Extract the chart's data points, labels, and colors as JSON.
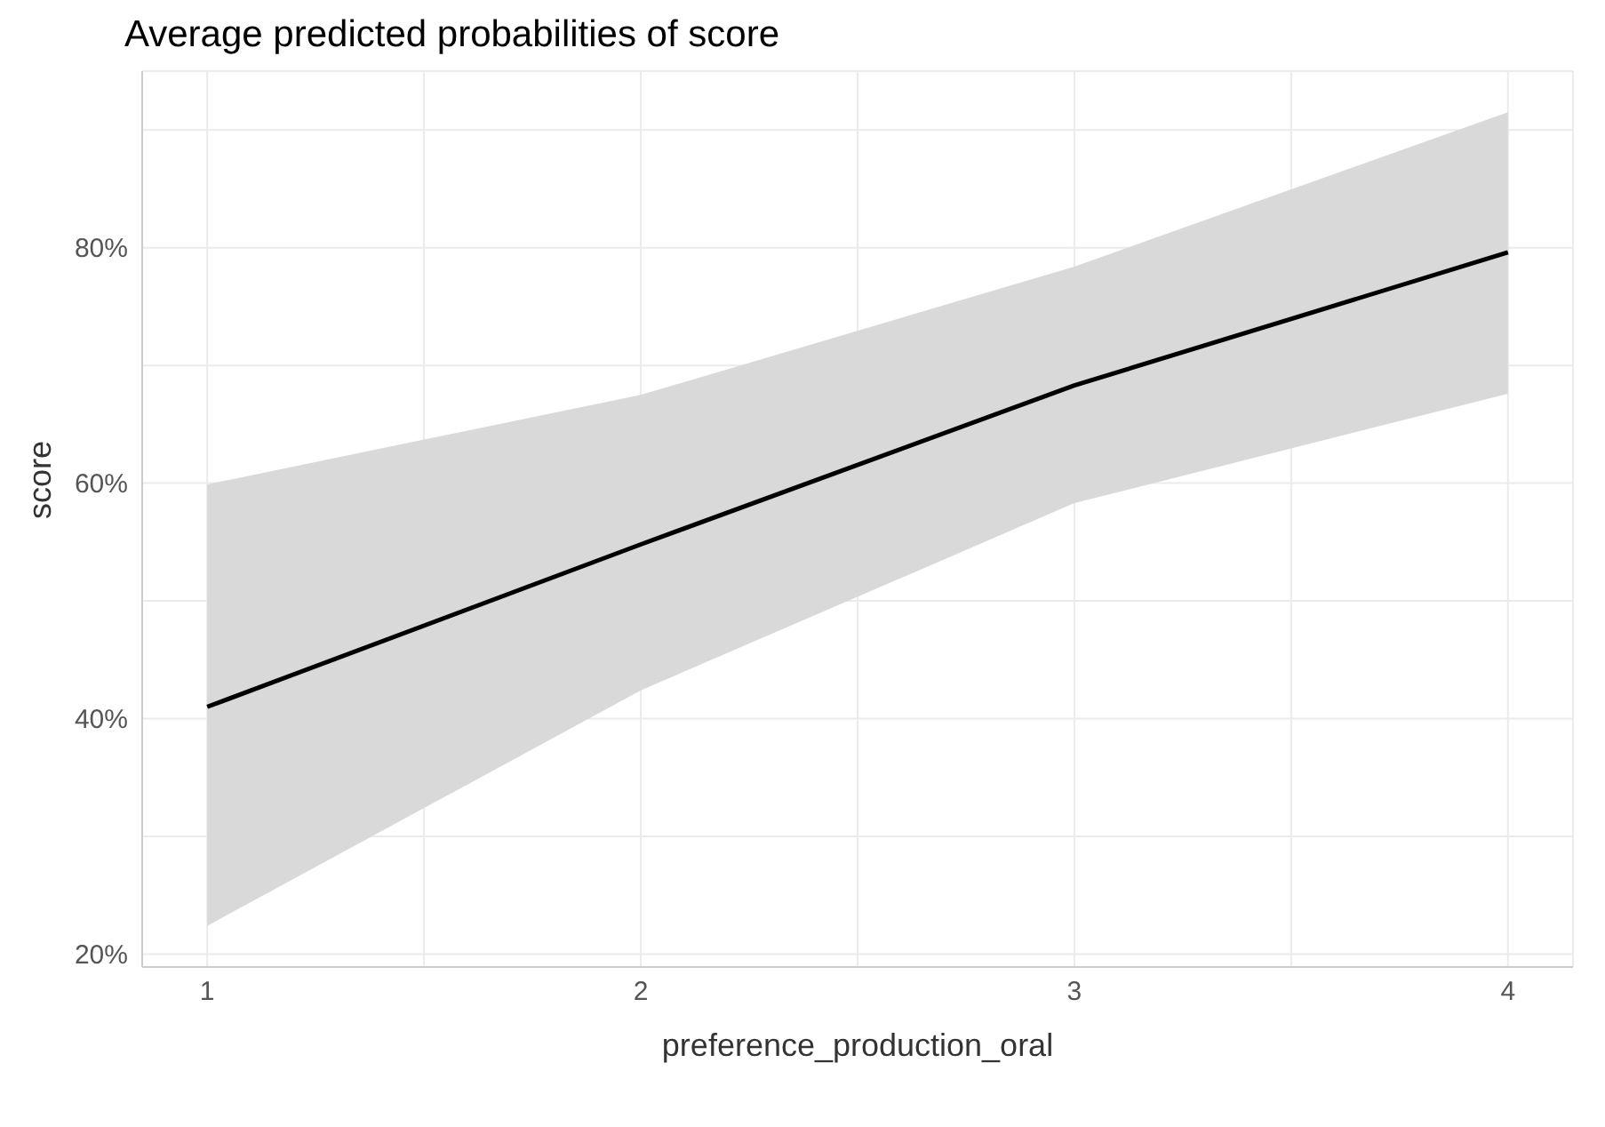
{
  "chart_data": {
    "type": "line",
    "title": "Average predicted probabilities of score",
    "xlabel": "preference_production_oral",
    "ylabel": "score",
    "x": [
      1,
      2,
      3,
      4
    ],
    "series": [
      {
        "color": "#000000",
        "values": [
          41.0,
          54.8,
          68.3,
          79.6
        ],
        "lower": [
          22.4,
          42.4,
          58.3,
          67.6
        ],
        "upper": [
          59.9,
          67.5,
          78.4,
          91.5
        ]
      }
    ],
    "xlim": [
      0.85,
      4.15
    ],
    "xticks": [
      1,
      {
        "value": 1.5,
        "label": null
      },
      2,
      {
        "value": 2.5,
        "label": null
      },
      3,
      {
        "value": 3.5,
        "label": null
      },
      4
    ],
    "ylim": [
      18.9,
      95
    ],
    "yticks": [
      {
        "value": 20,
        "label": "20%"
      },
      {
        "value": 30,
        "label": null
      },
      {
        "value": 40,
        "label": "40%"
      },
      {
        "value": 50,
        "label": null
      },
      {
        "value": 60,
        "label": "60%"
      },
      {
        "value": 70,
        "label": null
      },
      {
        "value": 80,
        "label": "80%"
      },
      {
        "value": 90,
        "label": null
      }
    ],
    "grid": true,
    "legend": false,
    "marker": "none",
    "line_style": "solid"
  }
}
